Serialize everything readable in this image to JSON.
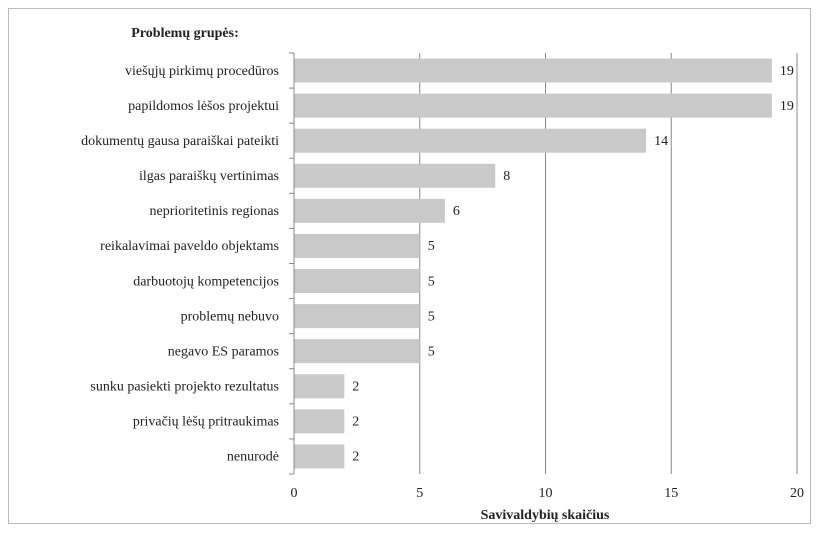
{
  "chart_data": {
    "type": "bar",
    "orientation": "horizontal",
    "title": "Problemų grupės:",
    "xlabel": "Savivaldybių skaičius",
    "categories": [
      "viešųjų pirkimų procedūros",
      "papildomos lėšos projektui",
      "dokumentų gausa paraiškai pateikti",
      "ilgas paraiškų vertinimas",
      "neprioritetinis regionas",
      "reikalavimai paveldo objektams",
      "darbuotojų kompetencijos",
      "problemų nebuvo",
      "negavo ES paramos",
      "sunku pasiekti projekto rezultatus",
      "privačių lėšų pritraukimas",
      "nenurodė"
    ],
    "values": [
      19,
      19,
      14,
      8,
      6,
      5,
      5,
      5,
      5,
      2,
      2,
      2
    ],
    "color": "#c9c9c9",
    "xlim": [
      0,
      20
    ],
    "xticks": [
      0,
      5,
      10,
      15,
      20
    ],
    "grid": true
  }
}
